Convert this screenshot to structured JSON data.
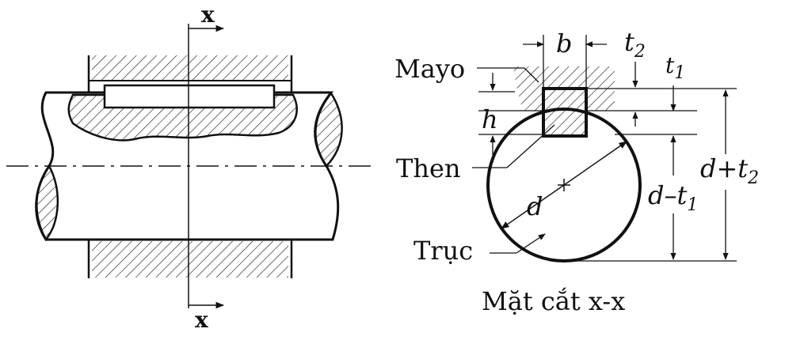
{
  "labels": {
    "section_mark_top": "x",
    "section_mark_bottom": "x",
    "mayo": "Mayo",
    "then": "Then",
    "truc": "Trục",
    "h": "h",
    "b": "b",
    "t2": "t",
    "t2_sub": "2",
    "t1": "t",
    "t1_sub": "1",
    "d": "d",
    "d_plus_t2_main": "d+t",
    "d_plus_t2_sub": "2",
    "d_minus_t1_main": "d–t",
    "d_minus_t1_sub": "1",
    "caption": "Mặt cắt x-x"
  },
  "colors": {
    "stroke": "#111111",
    "background": "#ffffff"
  }
}
